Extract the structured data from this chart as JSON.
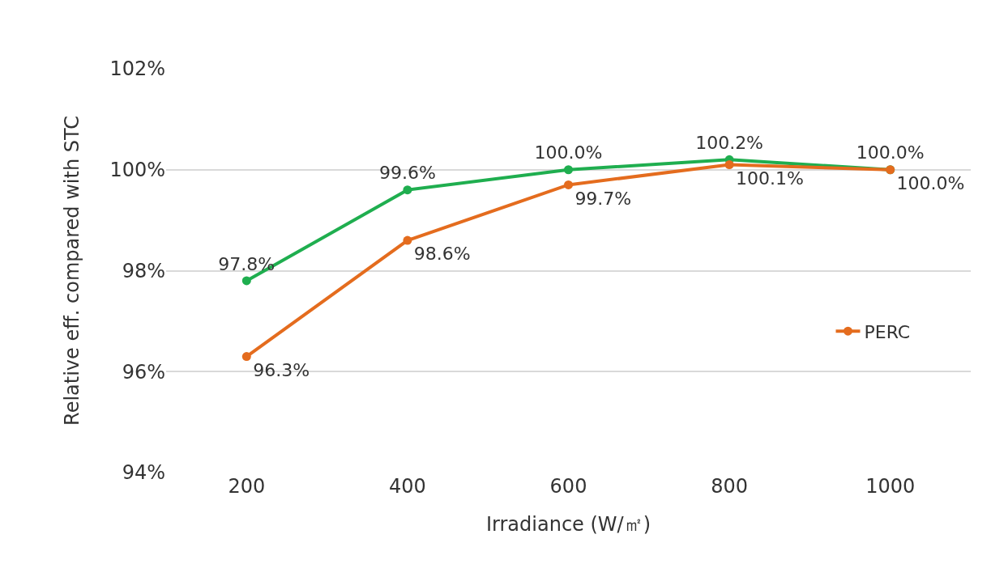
{
  "chart_data": {
    "type": "line",
    "xlabel": "Irradiance (W/㎡)",
    "ylabel": "Relative eff. compared with STC",
    "categories": [
      "200",
      "400",
      "600",
      "800",
      "1000"
    ],
    "series": [
      {
        "color": "#1fae4f",
        "values": [
          97.8,
          99.6,
          100.0,
          100.2,
          100.0
        ],
        "value_labels": [
          "97.8%",
          "99.6%",
          "100.0%",
          "100.2%",
          "100.0%"
        ]
      },
      {
        "name": "PERC",
        "color": "#e46c1e",
        "values": [
          96.3,
          98.6,
          99.7,
          100.1,
          100.0
        ],
        "value_labels": [
          "96.3%",
          "98.6%",
          "99.7%",
          "100.1%",
          "100.0%"
        ]
      }
    ],
    "ylim": [
      94,
      102
    ],
    "yticks": [
      {
        "value": 94,
        "label": "94%"
      },
      {
        "value": 96,
        "label": "96%"
      },
      {
        "value": 98,
        "label": "98%"
      },
      {
        "value": 100,
        "label": "100%"
      },
      {
        "value": 102,
        "label": "102%"
      }
    ],
    "grid": "y",
    "legend": "right",
    "marker": "circle",
    "line_style": "solid"
  }
}
